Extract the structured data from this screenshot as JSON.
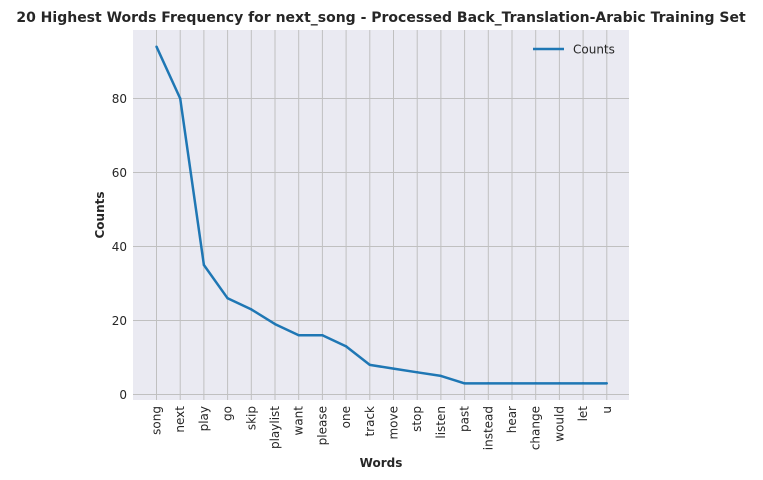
{
  "chart_data": {
    "type": "line",
    "title": "20 Highest Words Frequency for next_song - Processed Back_Translation-Arabic Training Set",
    "xlabel": "Words",
    "ylabel": "Counts",
    "categories": [
      "song",
      "next",
      "play",
      "go",
      "skip",
      "playlist",
      "want",
      "please",
      "one",
      "track",
      "move",
      "stop",
      "listen",
      "past",
      "instead",
      "hear",
      "change",
      "would",
      "let",
      "u"
    ],
    "series": [
      {
        "name": "Counts",
        "values": [
          94,
          80,
          35,
          26,
          23,
          19,
          16,
          16,
          13,
          8,
          7,
          6,
          5,
          3,
          3,
          3,
          3,
          3,
          3,
          3
        ]
      }
    ],
    "ylim": [
      -1.5,
      98.5
    ],
    "yticks": [
      0,
      20,
      40,
      60,
      80
    ],
    "ytick_labels": [
      "0",
      "20",
      "40",
      "60",
      "80"
    ],
    "grid": true,
    "legend_position": "top-right",
    "colors": {
      "line": "#1f77b4",
      "plot_bg": "#eaeaf2",
      "grid": "#c0c0c0"
    }
  }
}
